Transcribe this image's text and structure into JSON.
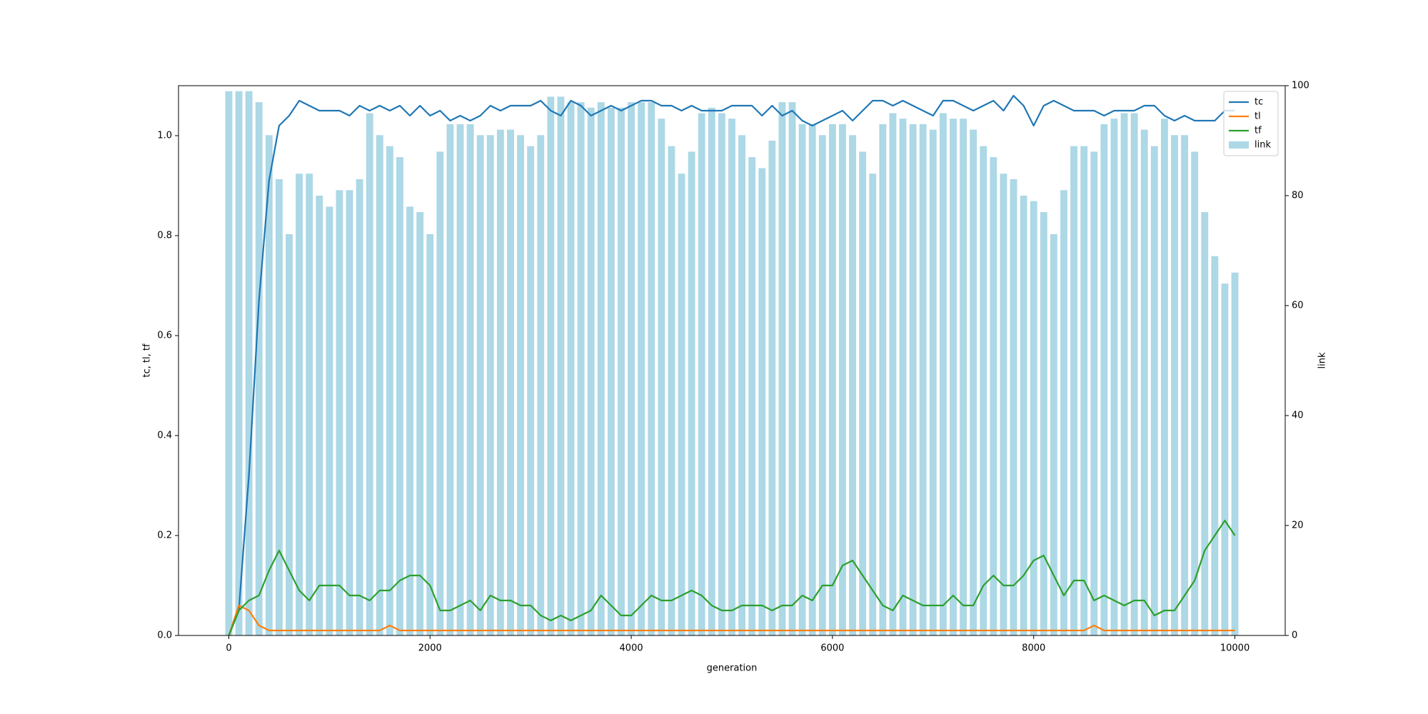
{
  "chart_data": {
    "type": "line",
    "xlabel": "generation",
    "ylabel": "tc, tl, tf",
    "y2label": "link",
    "xlim": [
      -500,
      10500
    ],
    "xticks": [
      0,
      2000,
      4000,
      6000,
      8000,
      10000
    ],
    "ylim": [
      0,
      1.1
    ],
    "yticks": [
      {
        "value": 0,
        "label": "0.0"
      },
      {
        "value": 0.2,
        "label": "0.2"
      },
      {
        "value": 0.4,
        "label": "0.4"
      },
      {
        "value": 0.6,
        "label": "0.6"
      },
      {
        "value": 0.8,
        "label": "0.8"
      },
      {
        "value": 1.0,
        "label": "1.0"
      }
    ],
    "y2lim": [
      0,
      100
    ],
    "y2ticks": [
      0,
      20,
      40,
      60,
      80,
      100
    ],
    "legend": "upper right",
    "x": [
      0,
      100,
      200,
      300,
      400,
      500,
      600,
      700,
      800,
      900,
      1000,
      1100,
      1200,
      1300,
      1400,
      1500,
      1600,
      1700,
      1800,
      1900,
      2000,
      2100,
      2200,
      2300,
      2400,
      2500,
      2600,
      2700,
      2800,
      2900,
      3000,
      3100,
      3200,
      3300,
      3400,
      3500,
      3600,
      3700,
      3800,
      3900,
      4000,
      4100,
      4200,
      4300,
      4400,
      4500,
      4600,
      4700,
      4800,
      4900,
      5000,
      5100,
      5200,
      5300,
      5400,
      5500,
      5600,
      5700,
      5800,
      5900,
      6000,
      6100,
      6200,
      6300,
      6400,
      6500,
      6600,
      6700,
      6800,
      6900,
      7000,
      7100,
      7200,
      7300,
      7400,
      7500,
      7600,
      7700,
      7800,
      7900,
      8000,
      8100,
      8200,
      8300,
      8400,
      8500,
      8600,
      8700,
      8800,
      8900,
      9000,
      9100,
      9200,
      9300,
      9400,
      9500,
      9600,
      9700,
      9800,
      9900,
      10000
    ],
    "series": [
      {
        "name": "tc",
        "color": "#1f77b4",
        "type": "line",
        "values": [
          0,
          0.05,
          0.32,
          0.67,
          0.91,
          1.02,
          1.04,
          1.07,
          1.06,
          1.05,
          1.05,
          1.05,
          1.04,
          1.06,
          1.05,
          1.06,
          1.05,
          1.06,
          1.04,
          1.06,
          1.04,
          1.05,
          1.03,
          1.04,
          1.03,
          1.04,
          1.06,
          1.05,
          1.06,
          1.06,
          1.06,
          1.07,
          1.05,
          1.04,
          1.07,
          1.06,
          1.04,
          1.05,
          1.06,
          1.05,
          1.06,
          1.07,
          1.07,
          1.06,
          1.06,
          1.05,
          1.06,
          1.05,
          1.05,
          1.05,
          1.06,
          1.06,
          1.06,
          1.04,
          1.06,
          1.04,
          1.05,
          1.03,
          1.02,
          1.03,
          1.04,
          1.05,
          1.03,
          1.05,
          1.07,
          1.07,
          1.06,
          1.07,
          1.06,
          1.05,
          1.04,
          1.07,
          1.07,
          1.06,
          1.05,
          1.06,
          1.07,
          1.05,
          1.08,
          1.06,
          1.02,
          1.06,
          1.07,
          1.06,
          1.05,
          1.05,
          1.05,
          1.04,
          1.05,
          1.05,
          1.05,
          1.06,
          1.06,
          1.04,
          1.03,
          1.04,
          1.03,
          1.03,
          1.03,
          1.05,
          1.05
        ]
      },
      {
        "name": "tl",
        "color": "#ff7f0e",
        "type": "line",
        "values": [
          0,
          0.06,
          0.05,
          0.02,
          0.01,
          0.01,
          0.01,
          0.01,
          0.01,
          0.01,
          0.01,
          0.01,
          0.01,
          0.01,
          0.01,
          0.01,
          0.02,
          0.01,
          0.01,
          0.01,
          0.01,
          0.01,
          0.01,
          0.01,
          0.01,
          0.01,
          0.01,
          0.01,
          0.01,
          0.01,
          0.01,
          0.01,
          0.01,
          0.01,
          0.01,
          0.01,
          0.01,
          0.01,
          0.01,
          0.01,
          0.01,
          0.01,
          0.01,
          0.01,
          0.01,
          0.01,
          0.01,
          0.01,
          0.01,
          0.01,
          0.01,
          0.01,
          0.01,
          0.01,
          0.01,
          0.01,
          0.01,
          0.01,
          0.01,
          0.01,
          0.01,
          0.01,
          0.01,
          0.01,
          0.01,
          0.01,
          0.01,
          0.01,
          0.01,
          0.01,
          0.01,
          0.01,
          0.01,
          0.01,
          0.01,
          0.01,
          0.01,
          0.01,
          0.01,
          0.01,
          0.01,
          0.01,
          0.01,
          0.01,
          0.01,
          0.01,
          0.02,
          0.01,
          0.01,
          0.01,
          0.01,
          0.01,
          0.01,
          0.01,
          0.01,
          0.01,
          0.01,
          0.01,
          0.01,
          0.01,
          0.01
        ]
      },
      {
        "name": "tf",
        "color": "#2ca02c",
        "type": "line",
        "values": [
          0,
          0.05,
          0.07,
          0.08,
          0.13,
          0.17,
          0.13,
          0.09,
          0.07,
          0.1,
          0.1,
          0.1,
          0.08,
          0.08,
          0.07,
          0.09,
          0.09,
          0.11,
          0.12,
          0.12,
          0.1,
          0.05,
          0.05,
          0.06,
          0.07,
          0.05,
          0.08,
          0.07,
          0.07,
          0.06,
          0.06,
          0.04,
          0.03,
          0.04,
          0.03,
          0.04,
          0.05,
          0.08,
          0.06,
          0.04,
          0.04,
          0.06,
          0.08,
          0.07,
          0.07,
          0.08,
          0.09,
          0.08,
          0.06,
          0.05,
          0.05,
          0.06,
          0.06,
          0.06,
          0.05,
          0.06,
          0.06,
          0.08,
          0.07,
          0.1,
          0.1,
          0.14,
          0.15,
          0.12,
          0.09,
          0.06,
          0.05,
          0.08,
          0.07,
          0.06,
          0.06,
          0.06,
          0.08,
          0.06,
          0.06,
          0.1,
          0.12,
          0.1,
          0.1,
          0.12,
          0.15,
          0.16,
          0.12,
          0.08,
          0.11,
          0.11,
          0.07,
          0.08,
          0.07,
          0.06,
          0.07,
          0.07,
          0.04,
          0.05,
          0.05,
          0.08,
          0.11,
          0.17,
          0.2,
          0.23,
          0.2
        ]
      },
      {
        "name": "link",
        "color": "#add8e6",
        "type": "bar",
        "axis": "y2",
        "values": [
          99,
          99,
          99,
          97,
          91,
          83,
          73,
          84,
          84,
          80,
          78,
          81,
          81,
          83,
          95,
          91,
          89,
          87,
          78,
          77,
          73,
          88,
          93,
          93,
          93,
          91,
          91,
          92,
          92,
          91,
          89,
          91,
          98,
          98,
          97,
          97,
          96,
          97,
          96,
          96,
          97,
          97,
          97,
          94,
          89,
          84,
          88,
          95,
          96,
          95,
          94,
          91,
          87,
          85,
          90,
          97,
          97,
          93,
          93,
          91,
          93,
          93,
          91,
          88,
          84,
          93,
          95,
          94,
          93,
          93,
          92,
          95,
          94,
          94,
          92,
          89,
          87,
          84,
          83,
          80,
          79,
          77,
          73,
          81,
          89,
          89,
          88,
          93,
          94,
          95,
          95,
          92,
          89,
          94,
          91,
          91,
          88,
          77,
          69,
          64,
          66
        ]
      }
    ]
  }
}
